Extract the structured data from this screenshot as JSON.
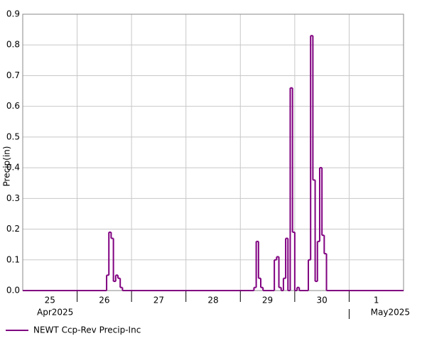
{
  "chart_data": {
    "type": "step",
    "y_label": "Precip(in)",
    "xlim": [
      0,
      168
    ],
    "xticks": [
      {
        "value": 12,
        "label": "25"
      },
      {
        "value": 36,
        "label": "26"
      },
      {
        "value": 60,
        "label": "27"
      },
      {
        "value": 84,
        "label": "28"
      },
      {
        "value": 108,
        "label": "29"
      },
      {
        "value": 132,
        "label": "30"
      },
      {
        "value": 156,
        "label": "1"
      }
    ],
    "x_group_labels": [
      {
        "value": 0,
        "label": "Apr2025"
      },
      {
        "value": 144,
        "label": "May2025"
      }
    ],
    "ylim": [
      0,
      0.9
    ],
    "yticks": [
      {
        "value": 0,
        "label": "0.0"
      },
      0.1,
      0.2,
      0.3,
      0.4,
      0.5,
      0.6,
      0.7,
      0.8,
      0.9
    ],
    "grid": true,
    "series": [
      {
        "name": "NEWT Ccp-Rev Precip-Inc",
        "color": "#800080",
        "x": [
          0,
          37,
          38,
          39,
          40,
          41,
          42,
          43,
          44,
          102,
          103,
          104,
          105,
          106,
          111,
          112,
          113,
          114,
          115,
          116,
          117,
          118,
          119,
          120,
          121,
          122,
          126,
          127,
          128,
          129,
          130,
          131,
          132,
          133,
          134,
          168
        ],
        "values": [
          0,
          0.05,
          0.19,
          0.17,
          0.03,
          0.05,
          0.04,
          0.01,
          0,
          0.01,
          0.16,
          0.04,
          0.01,
          0,
          0.1,
          0.11,
          0.01,
          0,
          0.04,
          0.17,
          0,
          0.66,
          0.19,
          0,
          0.01,
          0,
          0.1,
          0.83,
          0.36,
          0.03,
          0.16,
          0.4,
          0.18,
          0.12,
          0,
          0
        ]
      }
    ]
  }
}
